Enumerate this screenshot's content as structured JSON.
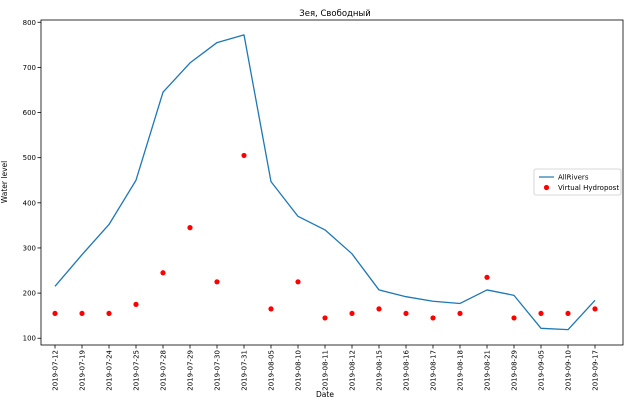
{
  "chart_data": {
    "type": "line",
    "title": "Зея, Свободный",
    "xlabel": "Date",
    "ylabel": "Water level",
    "categories": [
      "2019-07-12",
      "2019-07-19",
      "2019-07-24",
      "2019-07-25",
      "2019-07-28",
      "2019-07-29",
      "2019-07-30",
      "2019-07-31",
      "2019-08-05",
      "2019-08-10",
      "2019-08-11",
      "2019-08-12",
      "2019-08-15",
      "2019-08-16",
      "2019-08-17",
      "2019-08-18",
      "2019-08-21",
      "2019-08-29",
      "2019-09-05",
      "2019-09-10",
      "2019-09-17"
    ],
    "ylim": [
      85,
      805
    ],
    "yticks": [
      100,
      200,
      300,
      400,
      500,
      600,
      700,
      800
    ],
    "grid": false,
    "legend_position": "center-right",
    "series": [
      {
        "name": "AllRivers",
        "kind": "line",
        "color": "#1f77b4",
        "values": [
          215,
          285,
          352,
          450,
          645,
          710,
          755,
          772,
          447,
          370,
          340,
          287,
          207,
          192,
          182,
          177,
          207,
          195,
          122,
          119,
          184
        ]
      },
      {
        "name": "Virtual Hydropost",
        "kind": "scatter",
        "color": "#ff0000",
        "values": [
          155,
          155,
          155,
          175,
          245,
          345,
          225,
          505,
          165,
          225,
          145,
          155,
          165,
          155,
          145,
          155,
          235,
          145,
          155,
          155,
          165
        ]
      }
    ]
  }
}
